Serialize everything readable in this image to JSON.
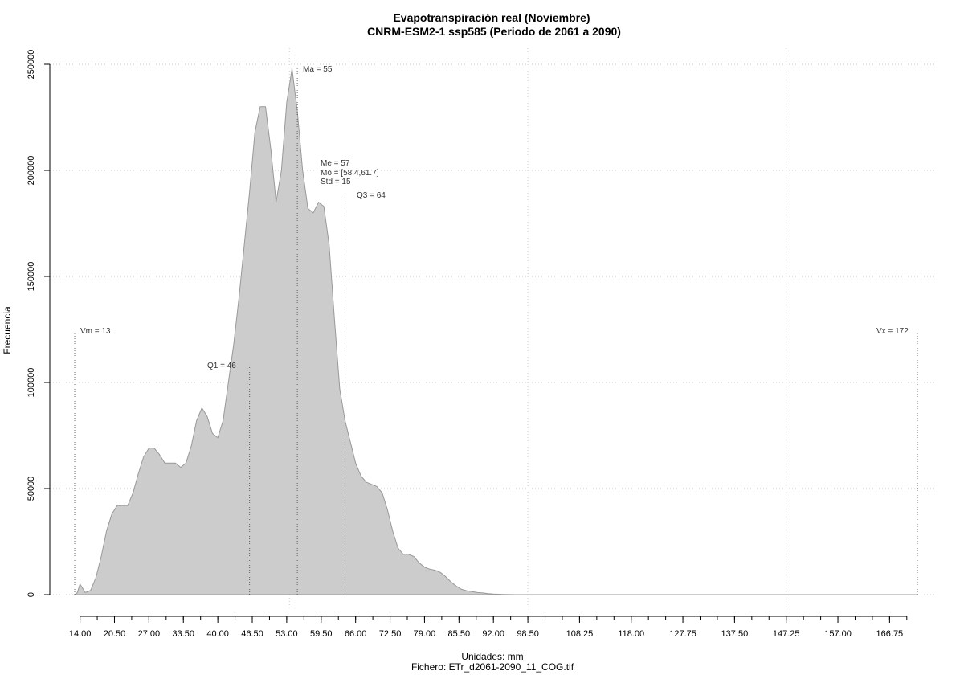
{
  "chart_data": {
    "type": "area",
    "title": "Evapotranspiración real (Noviembre)",
    "subtitle": "CNRM-ESM2-1 ssp585 (Periodo de 2061 a 2090)",
    "xlabel": "Unidades: mm",
    "ylabel": "Frecuencia",
    "footer": "Fichero: ETr_d2061-2090_11_COG.tif",
    "xlim": [
      13,
      172
    ],
    "ylim": [
      0,
      250000
    ],
    "x_ticks": [
      14.0,
      20.5,
      27.0,
      33.5,
      40.0,
      46.5,
      53.0,
      59.5,
      66.0,
      72.5,
      79.0,
      85.5,
      92.0,
      98.5,
      108.25,
      118.0,
      127.75,
      137.5,
      147.25,
      157.0,
      166.75
    ],
    "x_tick_labels": [
      "14.00",
      "20.50",
      "27.00",
      "33.50",
      "40.00",
      "46.50",
      "53.00",
      "59.50",
      "66.00",
      "72.50",
      "79.00",
      "85.50",
      "92.00",
      "98.50",
      "108.25",
      "118.00",
      "127.75",
      "137.50",
      "147.25",
      "157.00",
      "166.75"
    ],
    "y_ticks": [
      0,
      50000,
      100000,
      150000,
      200000,
      250000
    ],
    "y_tick_labels": [
      "0",
      "50000",
      "100000",
      "150000",
      "200000",
      "250000"
    ],
    "grid": true,
    "fill_color": "#cccccc",
    "line_color": "#999999",
    "x": [
      13,
      13.5,
      14,
      15,
      16,
      17,
      18,
      19,
      20,
      21,
      22,
      23,
      24,
      25,
      26,
      27,
      28,
      29,
      30,
      31,
      32,
      33,
      34,
      35,
      36,
      37,
      38,
      39,
      40,
      41,
      42,
      43,
      44,
      45,
      46,
      47,
      48,
      49,
      50,
      51,
      52,
      53,
      54,
      55,
      56,
      57,
      58,
      59,
      60,
      61,
      62,
      63,
      64,
      65,
      66,
      67,
      68,
      69,
      70,
      71,
      72,
      73,
      74,
      75,
      76,
      77,
      78,
      79,
      80,
      81,
      82,
      83,
      84,
      85,
      86,
      87,
      88,
      89,
      90,
      91,
      92,
      93,
      94,
      95,
      96,
      97,
      98,
      99,
      100,
      102,
      104,
      106,
      108,
      110,
      115,
      120,
      130,
      140,
      150,
      160,
      170,
      172
    ],
    "y": [
      0,
      1000,
      5000,
      1000,
      2000,
      8000,
      18000,
      30000,
      38000,
      42000,
      42000,
      42000,
      48000,
      57000,
      65000,
      69000,
      69000,
      66000,
      62000,
      62000,
      62000,
      60000,
      62000,
      70000,
      82000,
      88000,
      84000,
      76000,
      74000,
      82000,
      100000,
      118000,
      140000,
      165000,
      190000,
      218000,
      230000,
      230000,
      210000,
      185000,
      200000,
      232000,
      248000,
      228000,
      200000,
      182000,
      180000,
      185000,
      183000,
      165000,
      130000,
      97000,
      82000,
      72000,
      62000,
      56000,
      53000,
      52000,
      51000,
      48000,
      40000,
      30000,
      22000,
      19000,
      19000,
      18000,
      15000,
      13000,
      12000,
      11500,
      10500,
      8500,
      6000,
      4000,
      2500,
      1800,
      1400,
      1000,
      800,
      500,
      300,
      200,
      100,
      50,
      0,
      0,
      0,
      0,
      0,
      0,
      0,
      0,
      0,
      0,
      0,
      0,
      0,
      0,
      0,
      0,
      0,
      0
    ],
    "annotations": {
      "vm": {
        "x": 13,
        "y": 123000,
        "label": "Vm = 13"
      },
      "q1": {
        "x": 46,
        "y": 108000,
        "label": "Q1 = 46"
      },
      "ma": {
        "x": 55,
        "y": 248000,
        "label": "Ma = 55"
      },
      "me_lines": [
        "Me = 57",
        "Mo = [58.4,61.7]",
        "Std = 15"
      ],
      "q3": {
        "x": 64,
        "y": 187000,
        "label": "Q3 = 64"
      },
      "vx": {
        "x": 172,
        "y": 123000,
        "label": "Vx = 172"
      }
    }
  }
}
